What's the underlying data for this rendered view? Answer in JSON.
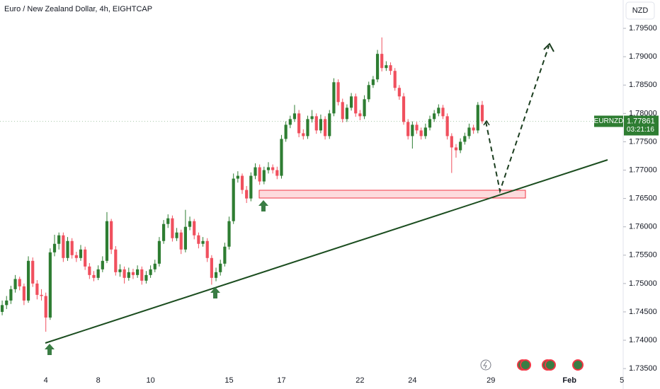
{
  "chart_data": {
    "type": "candlestick",
    "title": "Euro / New Zealand Dollar, 4h, EIGHTCAP",
    "currency": "NZD",
    "symbol": "EURNZD",
    "last_price": 1.77861,
    "countdown": "03:21:16",
    "up_color": "#2e7d32",
    "down_color": "#f0505e",
    "grid": false,
    "xlim": [
      -0.5,
      142.3
    ],
    "xticks": [
      {
        "value": 10,
        "label": "4"
      },
      {
        "value": 22,
        "label": "8"
      },
      {
        "value": 34,
        "label": "10"
      },
      {
        "value": 52,
        "label": "15"
      },
      {
        "value": 64,
        "label": "17"
      },
      {
        "value": 82,
        "label": "22"
      },
      {
        "value": 94,
        "label": "24"
      },
      {
        "value": 112,
        "label": "29"
      },
      {
        "value": 130,
        "label": "Feb"
      },
      {
        "value": 142,
        "label": "5"
      }
    ],
    "ylim": [
      1.7314,
      1.8
    ],
    "yticks": [
      {
        "value": 1.795,
        "label": "1.79500"
      },
      {
        "value": 1.79,
        "label": "1.79000"
      },
      {
        "value": 1.785,
        "label": "1.78500"
      },
      {
        "value": 1.78,
        "label": "1.78000"
      },
      {
        "value": 1.775,
        "label": "1.77500"
      },
      {
        "value": 1.77,
        "label": "1.77000"
      },
      {
        "value": 1.765,
        "label": "1.76500"
      },
      {
        "value": 1.76,
        "label": "1.76000"
      },
      {
        "value": 1.755,
        "label": "1.75500"
      },
      {
        "value": 1.75,
        "label": "1.75000"
      },
      {
        "value": 1.745,
        "label": "1.74500"
      },
      {
        "value": 1.74,
        "label": "1.74000"
      },
      {
        "value": 1.735,
        "label": "1.73500"
      }
    ],
    "candles": [
      [
        1.745,
        1.747,
        1.7444,
        1.7462
      ],
      [
        1.7462,
        1.7478,
        1.7455,
        1.747
      ],
      [
        1.747,
        1.7496,
        1.7464,
        1.749
      ],
      [
        1.749,
        1.7515,
        1.7484,
        1.7508
      ],
      [
        1.7508,
        1.7512,
        1.7488,
        1.7495
      ],
      [
        1.7495,
        1.75,
        1.7462,
        1.747
      ],
      [
        1.747,
        1.7548,
        1.7466,
        1.754
      ],
      [
        1.754,
        1.7546,
        1.7494,
        1.75
      ],
      [
        1.75,
        1.7506,
        1.7472,
        1.748
      ],
      [
        1.748,
        1.749,
        1.747,
        1.7478
      ],
      [
        1.7478,
        1.7484,
        1.7415,
        1.744
      ],
      [
        1.744,
        1.7562,
        1.7436,
        1.7555
      ],
      [
        1.7555,
        1.7586,
        1.7548,
        1.757
      ],
      [
        1.757,
        1.759,
        1.756,
        1.7585
      ],
      [
        1.7585,
        1.759,
        1.7538,
        1.7545
      ],
      [
        1.7545,
        1.7582,
        1.754,
        1.7575
      ],
      [
        1.7575,
        1.758,
        1.7544,
        1.755
      ],
      [
        1.755,
        1.7556,
        1.7538,
        1.7545
      ],
      [
        1.7545,
        1.7568,
        1.754,
        1.756
      ],
      [
        1.756,
        1.7565,
        1.7524,
        1.753
      ],
      [
        1.753,
        1.7536,
        1.7508,
        1.7515
      ],
      [
        1.7515,
        1.7522,
        1.7504,
        1.751
      ],
      [
        1.751,
        1.7532,
        1.7506,
        1.7525
      ],
      [
        1.7525,
        1.7548,
        1.752,
        1.754
      ],
      [
        1.754,
        1.7626,
        1.7536,
        1.761
      ],
      [
        1.761,
        1.7614,
        1.7552,
        1.756
      ],
      [
        1.756,
        1.7566,
        1.7514,
        1.752
      ],
      [
        1.752,
        1.7534,
        1.7512,
        1.7525
      ],
      [
        1.7525,
        1.753,
        1.75,
        1.751
      ],
      [
        1.751,
        1.7528,
        1.7505,
        1.752
      ],
      [
        1.752,
        1.7526,
        1.7508,
        1.7515
      ],
      [
        1.7515,
        1.7532,
        1.751,
        1.7525
      ],
      [
        1.7525,
        1.753,
        1.7498,
        1.7505
      ],
      [
        1.7505,
        1.7522,
        1.75,
        1.7515
      ],
      [
        1.7515,
        1.7532,
        1.751,
        1.7525
      ],
      [
        1.7525,
        1.7542,
        1.752,
        1.7535
      ],
      [
        1.7535,
        1.7582,
        1.753,
        1.7575
      ],
      [
        1.7575,
        1.7612,
        1.757,
        1.7605
      ],
      [
        1.7605,
        1.7622,
        1.7598,
        1.7615
      ],
      [
        1.7615,
        1.762,
        1.7574,
        1.758
      ],
      [
        1.758,
        1.7598,
        1.7575,
        1.759
      ],
      [
        1.759,
        1.7595,
        1.7552,
        1.756
      ],
      [
        1.756,
        1.763,
        1.7555,
        1.76
      ],
      [
        1.76,
        1.7618,
        1.7594,
        1.761
      ],
      [
        1.761,
        1.7614,
        1.7578,
        1.7585
      ],
      [
        1.7585,
        1.759,
        1.7562,
        1.757
      ],
      [
        1.757,
        1.7582,
        1.7565,
        1.7575
      ],
      [
        1.7575,
        1.758,
        1.7538,
        1.7545
      ],
      [
        1.7545,
        1.755,
        1.7498,
        1.751
      ],
      [
        1.751,
        1.7528,
        1.7504,
        1.752
      ],
      [
        1.752,
        1.7542,
        1.7514,
        1.7535
      ],
      [
        1.7535,
        1.7572,
        1.753,
        1.7565
      ],
      [
        1.7565,
        1.7618,
        1.756,
        1.761
      ],
      [
        1.761,
        1.7694,
        1.7605,
        1.7685
      ],
      [
        1.7685,
        1.7698,
        1.7678,
        1.769
      ],
      [
        1.769,
        1.7694,
        1.7658,
        1.7665
      ],
      [
        1.7665,
        1.7672,
        1.7642,
        1.765
      ],
      [
        1.765,
        1.7696,
        1.7645,
        1.769
      ],
      [
        1.769,
        1.7712,
        1.7684,
        1.7705
      ],
      [
        1.7705,
        1.771,
        1.7674,
        1.768
      ],
      [
        1.768,
        1.7706,
        1.7675,
        1.77
      ],
      [
        1.77,
        1.7714,
        1.7694,
        1.7705
      ],
      [
        1.7705,
        1.771,
        1.7694,
        1.77
      ],
      [
        1.77,
        1.7706,
        1.7684,
        1.769
      ],
      [
        1.769,
        1.7762,
        1.7685,
        1.7755
      ],
      [
        1.7755,
        1.7786,
        1.775,
        1.778
      ],
      [
        1.778,
        1.7796,
        1.7774,
        1.779
      ],
      [
        1.779,
        1.7815,
        1.7785,
        1.78
      ],
      [
        1.78,
        1.7806,
        1.7758,
        1.7765
      ],
      [
        1.7765,
        1.7772,
        1.7754,
        1.776
      ],
      [
        1.776,
        1.7796,
        1.7755,
        1.779
      ],
      [
        1.779,
        1.7806,
        1.7784,
        1.7795
      ],
      [
        1.7795,
        1.78,
        1.7764,
        1.777
      ],
      [
        1.777,
        1.7798,
        1.7765,
        1.779
      ],
      [
        1.779,
        1.7795,
        1.7754,
        1.776
      ],
      [
        1.776,
        1.7806,
        1.7755,
        1.78
      ],
      [
        1.78,
        1.7862,
        1.7795,
        1.7855
      ],
      [
        1.7855,
        1.786,
        1.7814,
        1.782
      ],
      [
        1.782,
        1.7826,
        1.7784,
        1.779
      ],
      [
        1.779,
        1.7816,
        1.7785,
        1.781
      ],
      [
        1.781,
        1.7836,
        1.7805,
        1.783
      ],
      [
        1.783,
        1.7835,
        1.7794,
        1.78
      ],
      [
        1.78,
        1.7806,
        1.7788,
        1.7795
      ],
      [
        1.7795,
        1.7832,
        1.779,
        1.7825
      ],
      [
        1.7825,
        1.7856,
        1.782,
        1.785
      ],
      [
        1.785,
        1.7866,
        1.7845,
        1.786
      ],
      [
        1.786,
        1.7912,
        1.7855,
        1.7905
      ],
      [
        1.7905,
        1.7934,
        1.7874,
        1.788
      ],
      [
        1.788,
        1.7892,
        1.7875,
        1.7885
      ],
      [
        1.7885,
        1.789,
        1.7868,
        1.7875
      ],
      [
        1.7875,
        1.788,
        1.784,
        1.7845
      ],
      [
        1.7845,
        1.785,
        1.7824,
        1.783
      ],
      [
        1.783,
        1.7836,
        1.778,
        1.7785
      ],
      [
        1.7785,
        1.779,
        1.7754,
        1.776
      ],
      [
        1.776,
        1.7786,
        1.7738,
        1.778
      ],
      [
        1.778,
        1.7785,
        1.7764,
        1.777
      ],
      [
        1.777,
        1.7775,
        1.7754,
        1.776
      ],
      [
        1.776,
        1.7782,
        1.7755,
        1.7775
      ],
      [
        1.7775,
        1.7796,
        1.777,
        1.779
      ],
      [
        1.779,
        1.7806,
        1.7785,
        1.78
      ],
      [
        1.78,
        1.7816,
        1.7795,
        1.781
      ],
      [
        1.781,
        1.7815,
        1.779,
        1.7795
      ],
      [
        1.7795,
        1.78,
        1.7754,
        1.776
      ],
      [
        1.776,
        1.7765,
        1.7695,
        1.774
      ],
      [
        1.774,
        1.7746,
        1.7722,
        1.7735
      ],
      [
        1.7735,
        1.7756,
        1.773,
        1.775
      ],
      [
        1.775,
        1.7766,
        1.7745,
        1.776
      ],
      [
        1.776,
        1.7782,
        1.7755,
        1.7775
      ],
      [
        1.7775,
        1.778,
        1.7764,
        1.777
      ],
      [
        1.777,
        1.782,
        1.7765,
        1.7815
      ],
      [
        1.7815,
        1.7822,
        1.7782,
        1.7786
      ]
    ]
  }
}
